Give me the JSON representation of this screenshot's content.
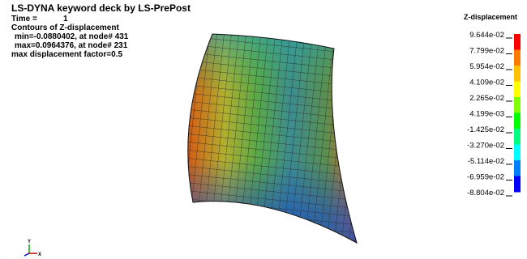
{
  "header": {
    "title": "LS-DYNA keyword deck by LS-PrePost",
    "time_label": "Time =",
    "time_value": "1",
    "contours": "Contours of Z-displacement",
    "min": "min=-0.0880402, at node# 431",
    "max": "max=0.0964376, at node# 231",
    "factor": "max displacement factor=0.5"
  },
  "legend": {
    "title": "Z-displacement",
    "labels": [
      "9.644e-02",
      "7.799e-02",
      "5.954e-02",
      "4.109e-02",
      "2.265e-02",
      "4.199e-03",
      "-1.425e-02",
      "-3.270e-02",
      "-5.114e-02",
      "-6.959e-02",
      "-8.804e-02"
    ],
    "colors": [
      "#ff0000",
      "#ff7a00",
      "#ffc000",
      "#ffff00",
      "#80ff00",
      "#00ff00",
      "#00ff80",
      "#00ffff",
      "#0080ff",
      "#0000ff"
    ]
  },
  "triad": {
    "y": "Y",
    "x": "X"
  }
}
